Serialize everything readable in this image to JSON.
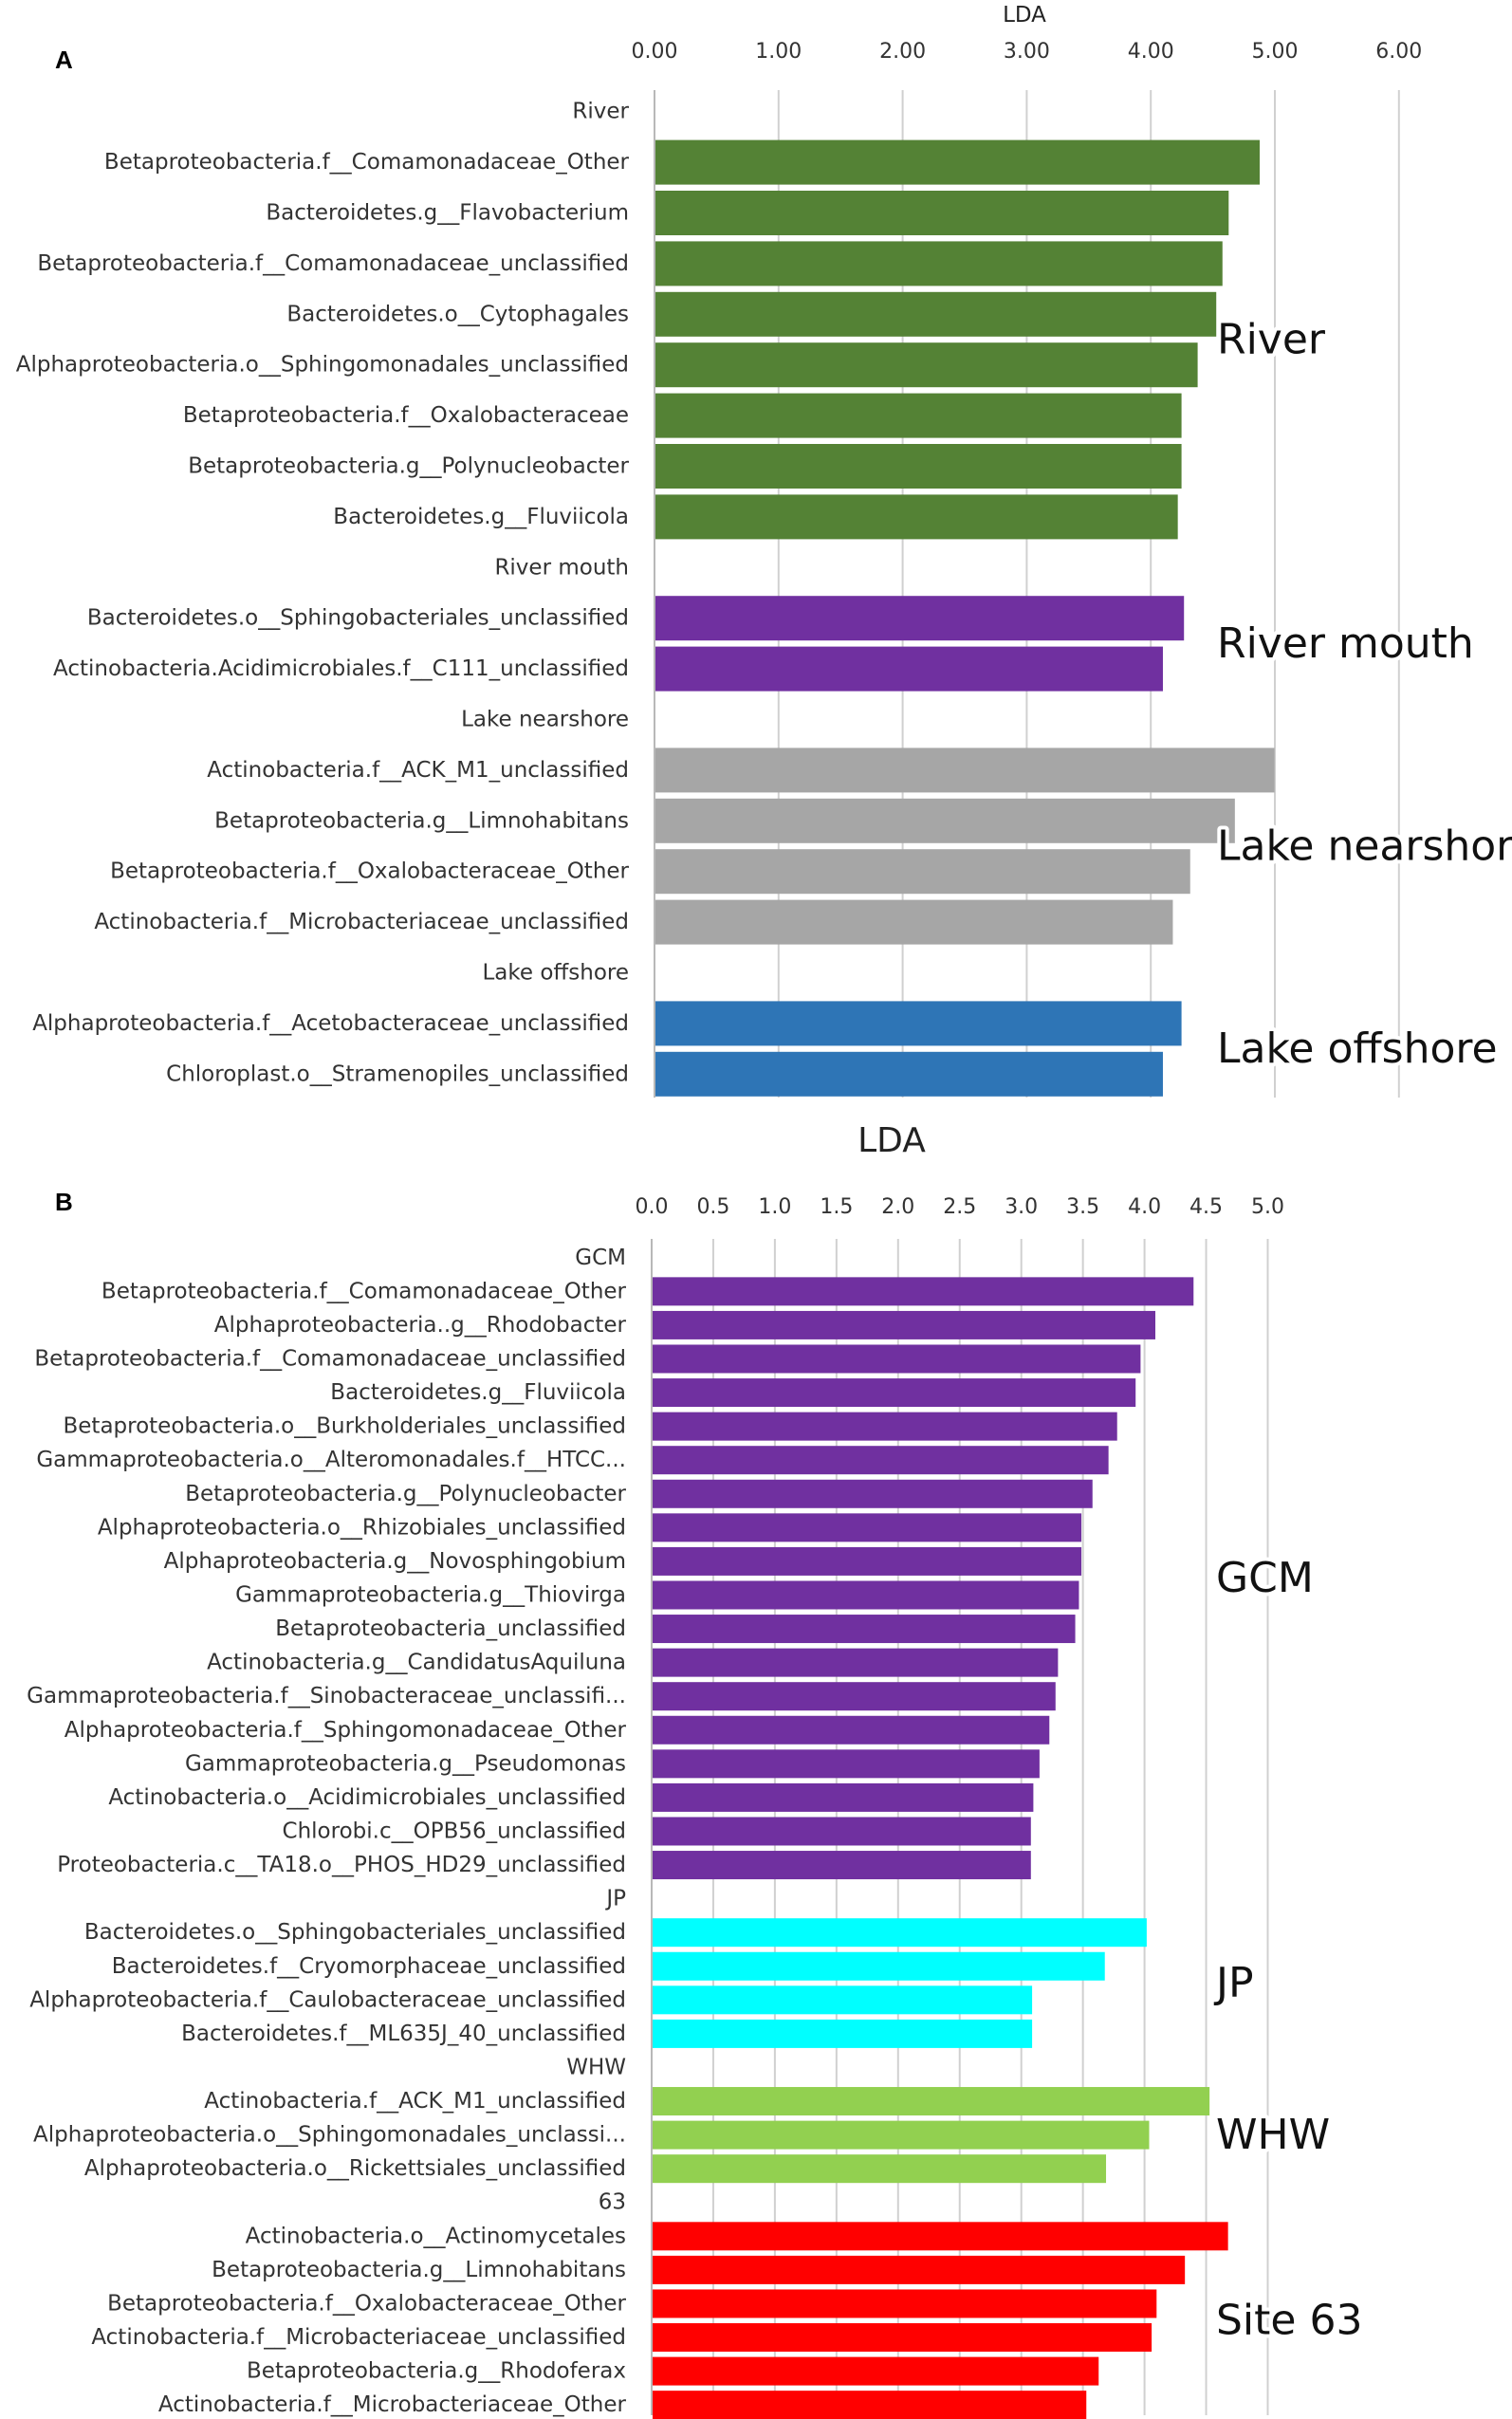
{
  "chart_data": [
    {
      "panel": "A",
      "type": "bar",
      "orientation": "horizontal",
      "xlabel": "LDA",
      "xlim": [
        0,
        6
      ],
      "ticks": [
        "0.00",
        "1.00",
        "2.00",
        "3.00",
        "4.00",
        "5.00",
        "6.00"
      ],
      "rows": [
        {
          "kind": "header",
          "label": "River"
        },
        {
          "kind": "bar",
          "label": "Betaproteobacteria.f__Comamonadaceae_Other",
          "value": 4.87,
          "color": "#548235"
        },
        {
          "kind": "bar",
          "label": "Bacteroidetes.g__Flavobacterium",
          "value": 4.62,
          "color": "#548235"
        },
        {
          "kind": "bar",
          "label": "Betaproteobacteria.f__Comamonadaceae_unclassified",
          "value": 4.57,
          "color": "#548235"
        },
        {
          "kind": "bar",
          "label": "Bacteroidetes.o__Cytophagales",
          "value": 4.52,
          "color": "#548235"
        },
        {
          "kind": "bar",
          "label": "Alphaproteobacteria.o__Sphingomonadales_unclassified",
          "value": 4.37,
          "color": "#548235"
        },
        {
          "kind": "bar",
          "label": "Betaproteobacteria.f__Oxalobacteraceae",
          "value": 4.24,
          "color": "#548235"
        },
        {
          "kind": "bar",
          "label": "Betaproteobacteria.g__Polynucleobacter",
          "value": 4.24,
          "color": "#548235"
        },
        {
          "kind": "bar",
          "label": "Bacteroidetes.g__Fluviicola",
          "value": 4.21,
          "color": "#548235"
        },
        {
          "kind": "header",
          "label": "River mouth"
        },
        {
          "kind": "bar",
          "label": "Bacteroidetes.o__Sphingobacteriales_unclassified",
          "value": 4.26,
          "color": "#7030A0"
        },
        {
          "kind": "bar",
          "label": "Actinobacteria.Acidimicrobiales.f__C111_unclassified",
          "value": 4.09,
          "color": "#7030A0"
        },
        {
          "kind": "header",
          "label": "Lake nearshore"
        },
        {
          "kind": "bar",
          "label": "Actinobacteria.f__ACK_M1_unclassified",
          "value": 4.99,
          "color": "#A6A6A6"
        },
        {
          "kind": "bar",
          "label": "Betaproteobacteria.g__Limnohabitans",
          "value": 4.67,
          "color": "#A6A6A6"
        },
        {
          "kind": "bar",
          "label": "Betaproteobacteria.f__Oxalobacteraceae_Other",
          "value": 4.31,
          "color": "#A6A6A6"
        },
        {
          "kind": "bar",
          "label": "Actinobacteria.f__Microbacteriaceae_unclassified",
          "value": 4.17,
          "color": "#A6A6A6"
        },
        {
          "kind": "header",
          "label": "Lake offshore"
        },
        {
          "kind": "bar",
          "label": "Alphaproteobacteria.f__Acetobacteraceae_unclassified",
          "value": 4.24,
          "color": "#2E75B6"
        },
        {
          "kind": "bar",
          "label": "Chloroplast.o__Stramenopiles_unclassified",
          "value": 4.09,
          "color": "#2E75B6"
        }
      ],
      "groups": [
        {
          "label": "River",
          "first": 1,
          "last": 8
        },
        {
          "label": "River mouth",
          "first": 10,
          "last": 11
        },
        {
          "label": "Lake nearshore",
          "first": 13,
          "last": 16
        },
        {
          "label": "Lake offshore",
          "first": 18,
          "last": 19
        }
      ]
    },
    {
      "panel": "B",
      "type": "bar",
      "orientation": "horizontal",
      "xlabel": "LDA",
      "xlim": [
        0,
        5.5
      ],
      "ticks": [
        "0.0",
        "0.5",
        "1.0",
        "1.5",
        "2.0",
        "2.5",
        "3.0",
        "3.5",
        "4.0",
        "4.5",
        "5.0"
      ],
      "rows": [
        {
          "kind": "header",
          "label": "GCM"
        },
        {
          "kind": "bar",
          "label": "Betaproteobacteria.f__Comamonadaceae_Other",
          "value": 4.39,
          "color": "#7030A0"
        },
        {
          "kind": "bar",
          "label": "Alphaproteobacteria..g__Rhodobacter",
          "value": 4.08,
          "color": "#7030A0"
        },
        {
          "kind": "bar",
          "label": "Betaproteobacteria.f__Comamonadaceae_unclassified",
          "value": 3.96,
          "color": "#7030A0"
        },
        {
          "kind": "bar",
          "label": "Bacteroidetes.g__Fluviicola",
          "value": 3.92,
          "color": "#7030A0"
        },
        {
          "kind": "bar",
          "label": "Betaproteobacteria.o__Burkholderiales_unclassified",
          "value": 3.77,
          "color": "#7030A0"
        },
        {
          "kind": "bar",
          "label": "Gammaproteobacteria.o__Alteromonadales.f__HTCC...",
          "value": 3.7,
          "color": "#7030A0"
        },
        {
          "kind": "bar",
          "label": "Betaproteobacteria.g__Polynucleobacter",
          "value": 3.57,
          "color": "#7030A0"
        },
        {
          "kind": "bar",
          "label": "Alphaproteobacteria.o__Rhizobiales_unclassified",
          "value": 3.48,
          "color": "#7030A0"
        },
        {
          "kind": "bar",
          "label": "Alphaproteobacteria.g__Novosphingobium",
          "value": 3.48,
          "color": "#7030A0"
        },
        {
          "kind": "bar",
          "label": "Gammaproteobacteria.g__Thiovirga",
          "value": 3.46,
          "color": "#7030A0"
        },
        {
          "kind": "bar",
          "label": "Betaproteobacteria_unclassified",
          "value": 3.43,
          "color": "#7030A0"
        },
        {
          "kind": "bar",
          "label": "Actinobacteria.g__CandidatusAquiluna",
          "value": 3.29,
          "color": "#7030A0"
        },
        {
          "kind": "bar",
          "label": "Gammaproteobacteria.f__Sinobacteraceae_unclassifi...",
          "value": 3.27,
          "color": "#7030A0"
        },
        {
          "kind": "bar",
          "label": "Alphaproteobacteria.f__Sphingomonadaceae_Other",
          "value": 3.22,
          "color": "#7030A0"
        },
        {
          "kind": "bar",
          "label": "Gammaproteobacteria.g__Pseudomonas",
          "value": 3.14,
          "color": "#7030A0"
        },
        {
          "kind": "bar",
          "label": "Actinobacteria.o__Acidimicrobiales_unclassified",
          "value": 3.09,
          "color": "#7030A0"
        },
        {
          "kind": "bar",
          "label": "Chlorobi.c__OPB56_unclassified",
          "value": 3.07,
          "color": "#7030A0"
        },
        {
          "kind": "bar",
          "label": "Proteobacteria.c__TA18.o__PHOS_HD29_unclassified",
          "value": 3.07,
          "color": "#7030A0"
        },
        {
          "kind": "header",
          "label": "JP"
        },
        {
          "kind": "bar",
          "label": "Bacteroidetes.o__Sphingobacteriales_unclassified",
          "value": 4.01,
          "color": "#00FFFF"
        },
        {
          "kind": "bar",
          "label": "Bacteroidetes.f__Cryomorphaceae_unclassified",
          "value": 3.67,
          "color": "#00FFFF"
        },
        {
          "kind": "bar",
          "label": "Alphaproteobacteria.f__Caulobacteraceae_unclassified",
          "value": 3.08,
          "color": "#00FFFF"
        },
        {
          "kind": "bar",
          "label": "Bacteroidetes.f__ML635J_40_unclassified",
          "value": 3.08,
          "color": "#00FFFF"
        },
        {
          "kind": "header",
          "label": "WHW"
        },
        {
          "kind": "bar",
          "label": "Actinobacteria.f__ACK_M1_unclassified",
          "value": 4.52,
          "color": "#92D050"
        },
        {
          "kind": "bar",
          "label": "Alphaproteobacteria.o__Sphingomonadales_unclassi...",
          "value": 4.03,
          "color": "#92D050"
        },
        {
          "kind": "bar",
          "label": "Alphaproteobacteria.o__Rickettsiales_unclassified",
          "value": 3.68,
          "color": "#92D050"
        },
        {
          "kind": "header",
          "label": "63"
        },
        {
          "kind": "bar",
          "label": "Actinobacteria.o__Actinomycetales",
          "value": 4.67,
          "color": "#FF0000"
        },
        {
          "kind": "bar",
          "label": "Betaproteobacteria.g__Limnohabitans",
          "value": 4.32,
          "color": "#FF0000"
        },
        {
          "kind": "bar",
          "label": "Betaproteobacteria.f__Oxalobacteraceae_Other",
          "value": 4.09,
          "color": "#FF0000"
        },
        {
          "kind": "bar",
          "label": "Actinobacteria.f__Microbacteriaceae_unclassified",
          "value": 4.05,
          "color": "#FF0000"
        },
        {
          "kind": "bar",
          "label": "Betaproteobacteria.g__Rhodoferax",
          "value": 3.62,
          "color": "#FF0000"
        },
        {
          "kind": "bar",
          "label": "Actinobacteria.f__Microbacteriaceae_Other",
          "value": 3.52,
          "color": "#FF0000"
        }
      ],
      "groups": [
        {
          "label": "GCM",
          "first": 1,
          "last": 18
        },
        {
          "label": "JP",
          "first": 20,
          "last": 23
        },
        {
          "label": "WHW",
          "first": 25,
          "last": 27
        },
        {
          "label": "Site 63",
          "first": 29,
          "last": 34
        }
      ]
    }
  ]
}
